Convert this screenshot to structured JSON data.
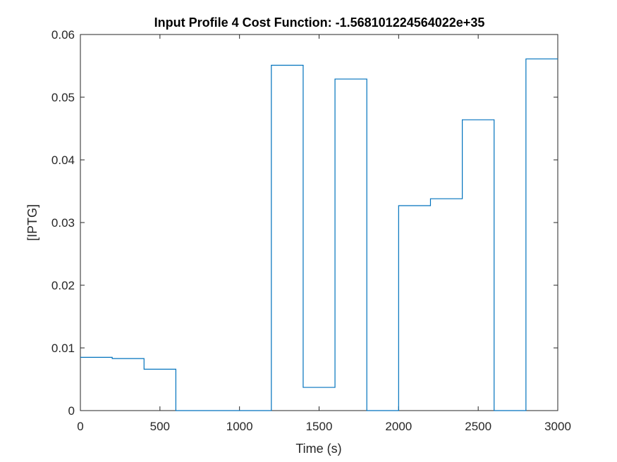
{
  "chart_data": {
    "type": "line",
    "step": true,
    "title": "Input Profile 4 Cost Function: -1.568101224564022e+35",
    "xlabel": "Time (s)",
    "ylabel": "[IPTG]",
    "xlim": [
      0,
      3000
    ],
    "ylim": [
      0,
      0.06
    ],
    "xticks": [
      0,
      500,
      1000,
      1500,
      2000,
      2500,
      3000
    ],
    "xtick_labels": [
      "0",
      "500",
      "1000",
      "1500",
      "2000",
      "2500",
      "3000"
    ],
    "yticks": [
      0,
      0.01,
      0.02,
      0.03,
      0.04,
      0.05,
      0.06
    ],
    "ytick_labels": [
      "0",
      "0.01",
      "0.02",
      "0.03",
      "0.04",
      "0.05",
      "0.06"
    ],
    "grid": false,
    "box": true,
    "series": [
      {
        "color": "#0072BD",
        "x": [
          0,
          200,
          400,
          600,
          800,
          1000,
          1200,
          1400,
          1600,
          1800,
          2000,
          2200,
          2400,
          2600,
          2800,
          3000
        ],
        "y": [
          0.0085,
          0.0083,
          0.0066,
          0.0,
          0.0,
          0.0,
          0.0551,
          0.0037,
          0.0529,
          0.0,
          0.0327,
          0.0338,
          0.0464,
          0.0,
          0.0561,
          0.0561
        ]
      }
    ]
  }
}
